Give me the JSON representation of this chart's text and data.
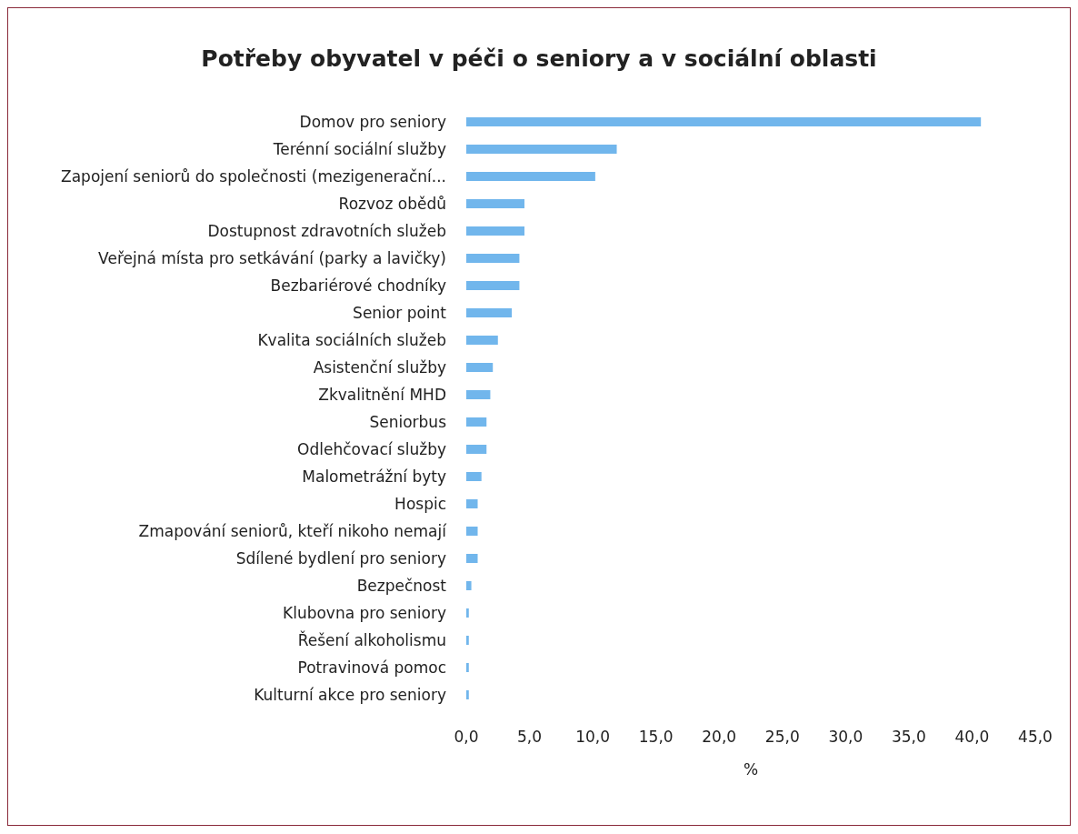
{
  "chart_data": {
    "type": "bar",
    "orientation": "horizontal",
    "title": "Potřeby obyvatel v péči o seniory a v sociální oblasti",
    "xlabel": "%",
    "categories": [
      "Domov pro seniory",
      "Terénní sociální služby",
      "Zapojení seniorů do společnosti (mezigenerační...",
      "Rozvoz obědů",
      "Dostupnost zdravotních služeb",
      "Veřejná místa pro setkávání (parky a lavičky)",
      "Bezbariérové chodníky",
      "Senior point",
      "Kvalita sociálních služeb",
      "Asistenční služby",
      "Zkvalitnění MHD",
      "Seniorbus",
      "Odlehčovací služby",
      "Malometrážní byty",
      "Hospic",
      "Zmapování seniorů, kteří nikoho nemají",
      "Sdílené bydlení pro seniory",
      "Bezpečnost",
      "Klubovna pro seniory",
      "Řešení alkoholismu",
      "Potravinová pomoc",
      "Kulturní akce pro seniory"
    ],
    "values": [
      40.7,
      11.9,
      10.2,
      4.6,
      4.6,
      4.2,
      4.2,
      3.6,
      2.5,
      2.1,
      1.9,
      1.6,
      1.6,
      1.2,
      0.9,
      0.9,
      0.9,
      0.4,
      0.2,
      0.2,
      0.2,
      0.2
    ],
    "color": "#71b6ec",
    "xlim": [
      0,
      45
    ],
    "xticks": [
      {
        "value": 0,
        "label": "0,0"
      },
      {
        "value": 5,
        "label": "5,0"
      },
      {
        "value": 10,
        "label": "10,0"
      },
      {
        "value": 15,
        "label": "15,0"
      },
      {
        "value": 20,
        "label": "20,0"
      },
      {
        "value": 25,
        "label": "25,0"
      },
      {
        "value": 30,
        "label": "30,0"
      },
      {
        "value": 35,
        "label": "35,0"
      },
      {
        "value": 40,
        "label": "40,0"
      },
      {
        "value": 45,
        "label": "45,0"
      }
    ],
    "grid": false
  }
}
